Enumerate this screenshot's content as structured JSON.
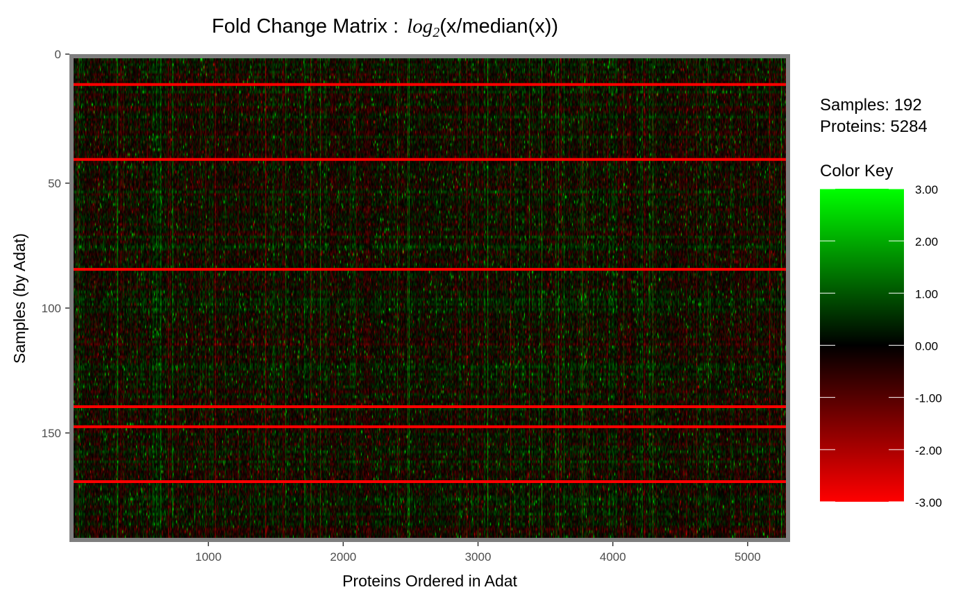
{
  "chart_data": {
    "type": "heatmap",
    "title": {
      "prefix": "Fold Change Matrix :",
      "func": "log",
      "sub": "2",
      "expr": "(x/median(x))"
    },
    "xlabel": "Proteins Ordered in Adat",
    "ylabel": "Samples (by Adat)",
    "xlim": [
      0,
      5284
    ],
    "ylim": [
      192,
      0
    ],
    "x_ticks": [
      1000,
      2000,
      3000,
      4000,
      5000
    ],
    "x_tick_labels": [
      "1000",
      "2000",
      "3000",
      "4000",
      "5000"
    ],
    "y_ticks": [
      0,
      50,
      100,
      150
    ],
    "y_tick_labels": [
      "0",
      "50",
      "100",
      "150"
    ],
    "samples_label": "Samples: 192",
    "proteins_label": "Proteins: 5284",
    "n_samples": 192,
    "n_proteins": 5284,
    "flagged_sample_rows": [
      10,
      40,
      84,
      139,
      147,
      169
    ],
    "flag_color": "#ff0000",
    "color_key": {
      "title": "Color Key",
      "min": -3,
      "max": 3,
      "labels": [
        "3.00",
        "2.00",
        "1.00",
        "0.00",
        "-1.00",
        "-2.00",
        "-3.00"
      ],
      "values": [
        3,
        2,
        1,
        0,
        -1,
        -2,
        -3
      ],
      "high_color": "#00ff00",
      "mid_color": "#000000",
      "low_color": "#ff0000"
    },
    "panel_border_color": "#7f7f7f",
    "grid": false
  }
}
